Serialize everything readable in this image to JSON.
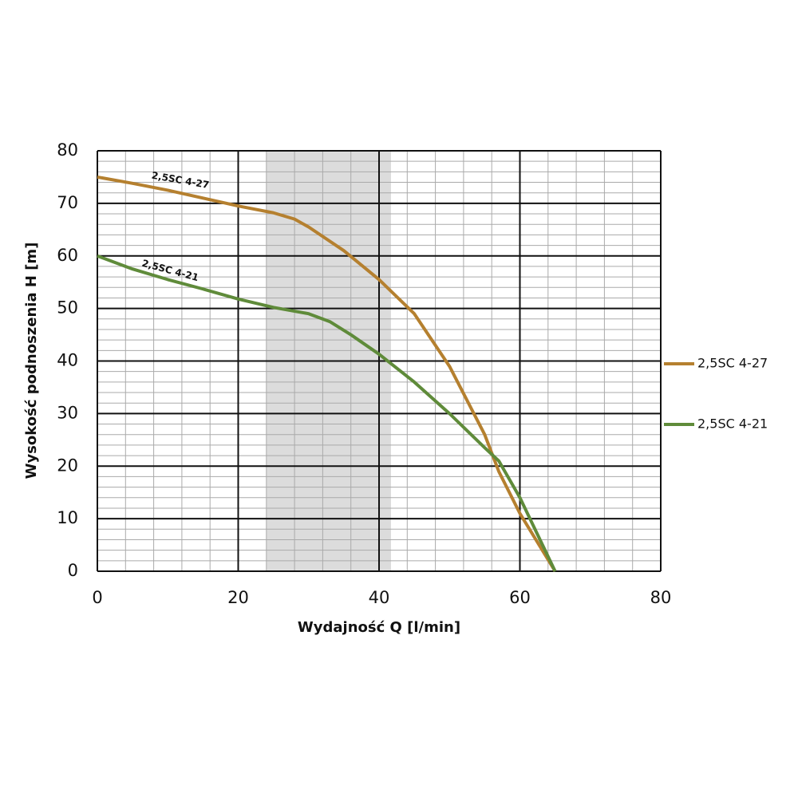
{
  "chart_data": {
    "type": "line",
    "xlabel": "Wydajność Q [l/min]",
    "ylabel": "Wysokość podnoszenia H [m]",
    "xlim": [
      0,
      80
    ],
    "ylim": [
      0,
      80
    ],
    "xticks": [
      0,
      20,
      40,
      60,
      80
    ],
    "yticks": [
      0,
      10,
      20,
      30,
      40,
      50,
      60,
      70,
      80
    ],
    "xminorticks": [
      4,
      8,
      12,
      16,
      24,
      28,
      32,
      36,
      44,
      48,
      52,
      56,
      64,
      68,
      72,
      76
    ],
    "yminorticks": [
      2,
      4,
      6,
      8,
      12,
      14,
      16,
      18,
      22,
      24,
      26,
      28,
      32,
      34,
      36,
      38,
      42,
      44,
      46,
      48,
      52,
      54,
      56,
      58,
      62,
      64,
      66,
      68,
      72,
      74,
      76,
      78
    ],
    "grid": true,
    "shaded_range": [
      24,
      41.7
    ],
    "legend": "right",
    "series": [
      {
        "name": "2,5SC 4-27",
        "color": "#b5802f",
        "x": [
          0,
          5,
          10,
          15,
          20,
          25,
          28,
          30,
          35,
          40,
          45,
          50,
          55,
          57,
          60,
          65
        ],
        "values": [
          75,
          73.8,
          72.5,
          71,
          69.5,
          68.2,
          67,
          65.5,
          61,
          55.5,
          49,
          39,
          26,
          19,
          11,
          0
        ]
      },
      {
        "name": "2,5SC 4-21",
        "color": "#5f8b3a",
        "x": [
          0,
          5,
          10,
          15,
          20,
          25,
          30,
          33,
          36,
          40,
          45,
          50,
          55,
          57,
          60,
          65
        ],
        "values": [
          60,
          57.5,
          55.5,
          53.7,
          51.8,
          50.2,
          49,
          47.5,
          45,
          41.3,
          36,
          30,
          23.5,
          21,
          14,
          0
        ]
      }
    ]
  }
}
